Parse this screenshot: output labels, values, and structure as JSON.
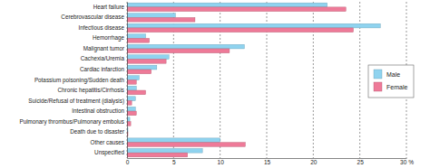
{
  "chart_data": {
    "type": "bar",
    "orientation": "horizontal",
    "categories": [
      "Heart failure",
      "Cerebrovascular disease",
      "Infectious disease",
      "Hemorrhage",
      "Malignant tumor",
      "Cachexia/Uremia",
      "Cardiac infarction",
      "Potassium poisoning/Sudden death",
      "Chronic hepatitis/Cirrhosis",
      "Suicide/Refusal of treatment (dialysis)",
      "Intestinal obstruction",
      "Pulmonary thrombus/Pulmonary embolus",
      "Death due to disaster",
      "Other causes",
      "Unspecified"
    ],
    "series": [
      {
        "name": "Male",
        "color": "#8fd3ef",
        "values": [
          21.5,
          5.2,
          27.2,
          2.0,
          12.6,
          4.5,
          3.2,
          1.3,
          1.0,
          0.9,
          0.9,
          0.3,
          0.1,
          10.0,
          8.1
        ]
      },
      {
        "name": "Female",
        "color": "#ee7a98",
        "values": [
          23.5,
          7.3,
          24.3,
          2.4,
          11.0,
          4.2,
          2.6,
          1.0,
          2.0,
          0.5,
          1.0,
          0.4,
          0.1,
          12.7,
          6.5
        ]
      }
    ],
    "xlim": [
      0,
      30
    ],
    "xticks": [
      0,
      5,
      10,
      15,
      20,
      25,
      {
        "value": 30,
        "label": "30 %"
      }
    ],
    "grid": true,
    "legend": "right"
  }
}
